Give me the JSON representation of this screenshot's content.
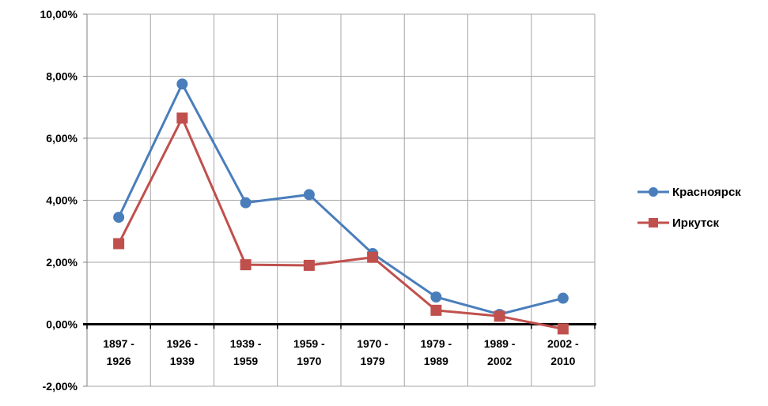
{
  "chart_data": {
    "type": "line",
    "categories": [
      [
        "1897 -",
        "1926"
      ],
      [
        "1926 -",
        "1939"
      ],
      [
        "1939 -",
        "1959"
      ],
      [
        "1959 -",
        "1970"
      ],
      [
        "1970 -",
        "1979"
      ],
      [
        "1979 -",
        "1989"
      ],
      [
        "1989 -",
        "2002"
      ],
      [
        "2002 -",
        "2010"
      ]
    ],
    "series": [
      {
        "name": "Красноярск",
        "color": "#4A7EBB",
        "marker": "circle",
        "values": [
          3.45,
          7.75,
          3.92,
          4.18,
          2.28,
          0.88,
          0.32,
          0.84
        ]
      },
      {
        "name": "Иркутск",
        "color": "#C0504D",
        "marker": "square",
        "values": [
          2.6,
          6.65,
          1.92,
          1.9,
          2.16,
          0.45,
          0.26,
          -0.15
        ]
      }
    ],
    "y_ticks": [
      {
        "value": 10,
        "label": "10,00%"
      },
      {
        "value": 8,
        "label": "8,00%"
      },
      {
        "value": 6,
        "label": "6,00%"
      },
      {
        "value": 4,
        "label": "4,00%"
      },
      {
        "value": 2,
        "label": "2,00%"
      },
      {
        "value": 0,
        "label": "0,00%"
      },
      {
        "value": -2,
        "label": "-2,00%"
      }
    ],
    "ylim": [
      -2,
      10
    ],
    "grid": true,
    "legend_position": "right",
    "title": "",
    "xlabel": "",
    "ylabel": ""
  }
}
